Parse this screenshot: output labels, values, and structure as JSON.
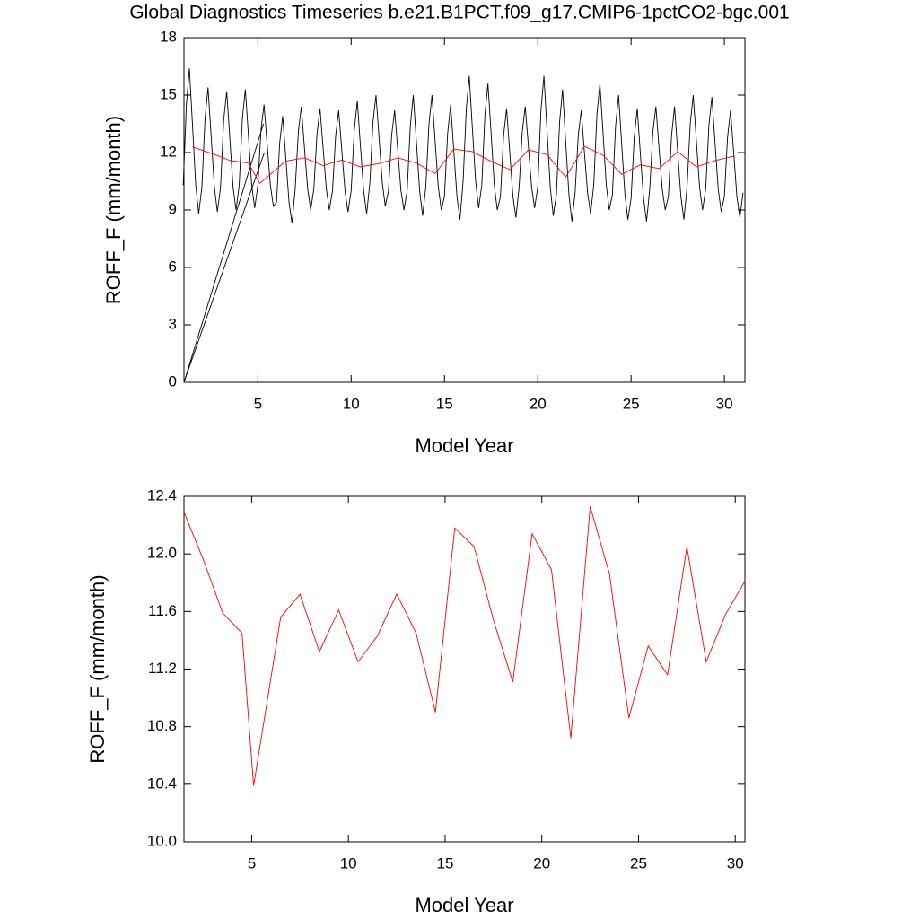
{
  "chart_data": [
    {
      "type": "line",
      "title": "Global Diagnostics Timeseries b.e21.B1PCT.f09_g17.CMIP6-1pctCO2-bgc.001",
      "y_label": "ROFF_F (mm/month)",
      "x_label": "Model Year",
      "xlim": [
        1.04,
        31.1
      ],
      "xticks": [
        5,
        10,
        15,
        20,
        25,
        30
      ],
      "ylim": [
        0,
        18
      ],
      "yticks": [
        0,
        3,
        6,
        9,
        12,
        15,
        18
      ],
      "series": [
        {
          "color": "#000000",
          "x": [
            1.04,
            5.35,
            5.35,
            1.04,
            5.3,
            5.3,
            1.0,
            1.17,
            1.33,
            1.5,
            1.67,
            1.83,
            2.0,
            2.17,
            2.33,
            2.5,
            2.67,
            2.83,
            3.0,
            3.17,
            3.33,
            3.5,
            3.67,
            3.83,
            4.0,
            4.17,
            4.33,
            4.5,
            4.67,
            4.83,
            5.0,
            5.17,
            5.33,
            5.5,
            5.67,
            5.83,
            6.0,
            6.17,
            6.33,
            6.5,
            6.67,
            6.83,
            7.0,
            7.17,
            7.33,
            7.5,
            7.67,
            7.83,
            8.0,
            8.17,
            8.33,
            8.5,
            8.67,
            8.83,
            9.0,
            9.17,
            9.33,
            9.5,
            9.67,
            9.83,
            10.0,
            10.17,
            10.33,
            10.5,
            10.67,
            10.83,
            11.0,
            11.17,
            11.33,
            11.5,
            11.67,
            11.83,
            12.0,
            12.17,
            12.33,
            12.5,
            12.67,
            12.83,
            13.0,
            13.17,
            13.33,
            13.5,
            13.67,
            13.83,
            14.0,
            14.17,
            14.33,
            14.5,
            14.67,
            14.83,
            15.0,
            15.17,
            15.33,
            15.5,
            15.67,
            15.83,
            16.0,
            16.17,
            16.33,
            16.5,
            16.67,
            16.83,
            17.0,
            17.17,
            17.33,
            17.5,
            17.67,
            17.83,
            18.0,
            18.17,
            18.33,
            18.5,
            18.67,
            18.83,
            19.0,
            19.17,
            19.33,
            19.5,
            19.67,
            19.83,
            20.0,
            20.17,
            20.33,
            20.5,
            20.67,
            20.83,
            21.0,
            21.17,
            21.33,
            21.5,
            21.67,
            21.83,
            22.0,
            22.17,
            22.33,
            22.5,
            22.67,
            22.83,
            23.0,
            23.17,
            23.33,
            23.5,
            23.67,
            23.83,
            24.0,
            24.17,
            24.33,
            24.5,
            24.67,
            24.83,
            25.0,
            25.17,
            25.33,
            25.5,
            25.67,
            25.83,
            26.0,
            26.17,
            26.33,
            26.5,
            26.67,
            26.83,
            27.0,
            27.17,
            27.33,
            27.5,
            27.67,
            27.83,
            28.0,
            28.17,
            28.33,
            28.5,
            28.67,
            28.83,
            29.0,
            29.17,
            29.33,
            29.5,
            29.67,
            29.83,
            30.0,
            30.17,
            30.33,
            30.5,
            30.67,
            30.83,
            31.0
          ],
          "values": [
            0,
            12.0,
            null,
            0,
            13.5,
            null,
            10.3,
            14.5,
            16.4,
            13.4,
            10.3,
            8.8,
            10.2,
            13.8,
            15.4,
            12.8,
            10.2,
            8.9,
            10.2,
            13.7,
            15.2,
            12.7,
            10.2,
            9.0,
            10.3,
            13.8,
            15.3,
            12.8,
            10.3,
            9.1,
            10.3,
            13.2,
            14.5,
            12.4,
            10.3,
            9.2,
            9.4,
            12.5,
            13.9,
            11.7,
            9.4,
            8.3,
            10.1,
            13.1,
            14.4,
            12.2,
            10.1,
            9.0,
            10.1,
            13.0,
            14.3,
            12.2,
            10.1,
            9.0,
            10.0,
            12.9,
            14.2,
            12.1,
            10.0,
            8.9,
            10.0,
            13.2,
            14.7,
            12.3,
            10.0,
            8.8,
            10.4,
            13.6,
            15.0,
            12.7,
            10.4,
            9.2,
            10.0,
            12.9,
            14.2,
            12.1,
            10.0,
            9.0,
            10.0,
            13.4,
            15.0,
            12.5,
            10.0,
            8.7,
            10.2,
            13.5,
            15.0,
            12.6,
            10.2,
            9.0,
            9.7,
            13.0,
            14.5,
            12.1,
            9.7,
            8.5,
            10.5,
            14.3,
            16.0,
            13.2,
            10.5,
            9.1,
            10.3,
            14.0,
            15.6,
            13.0,
            10.3,
            9.0,
            9.7,
            12.9,
            14.3,
            12.0,
            9.7,
            8.6,
            10.2,
            13.1,
            14.4,
            12.3,
            10.2,
            9.1,
            10.2,
            14.2,
            16.0,
            13.1,
            10.2,
            8.7,
            9.8,
            13.6,
            15.3,
            12.5,
            9.8,
            8.4,
            9.9,
            12.9,
            14.2,
            12.0,
            9.9,
            8.8,
            10.3,
            14.0,
            15.6,
            13.0,
            10.3,
            9.0,
            9.8,
            13.4,
            15.0,
            12.4,
            9.8,
            8.5,
            9.6,
            12.8,
            14.3,
            11.9,
            9.6,
            8.4,
            10.1,
            13.1,
            14.4,
            12.2,
            10.1,
            9.0,
            9.7,
            12.9,
            14.4,
            12.0,
            9.7,
            8.5,
            10.2,
            13.5,
            15.0,
            12.6,
            10.2,
            9.0,
            10.1,
            13.4,
            14.9,
            12.5,
            10.1,
            8.9,
            9.7,
            12.8,
            14.2,
            12.0,
            9.7,
            8.6,
            9.9
          ]
        },
        {
          "color": "#ff0000",
          "x": [
            1.5,
            2.5,
            3.5,
            4.5,
            5.1,
            6.5,
            7.5,
            8.5,
            9.5,
            10.5,
            11.5,
            12.5,
            13.5,
            14.5,
            15.5,
            16.5,
            17.5,
            18.5,
            19.5,
            20.5,
            21.5,
            22.5,
            23.5,
            24.5,
            25.5,
            26.5,
            27.5,
            28.5,
            29.5,
            30.5
          ],
          "values": [
            12.29,
            11.96,
            11.59,
            11.45,
            10.39,
            11.56,
            11.72,
            11.32,
            11.61,
            11.25,
            11.43,
            11.72,
            11.45,
            10.9,
            12.18,
            12.05,
            11.54,
            11.11,
            12.14,
            11.89,
            10.72,
            12.33,
            11.86,
            10.86,
            11.36,
            11.16,
            12.05,
            11.25,
            11.58,
            11.81
          ]
        }
      ]
    },
    {
      "type": "line",
      "y_label": "ROFF_F (mm/month)",
      "x_label": "Model Year",
      "xlim": [
        1.5,
        30.5
      ],
      "xticks": [
        5,
        10,
        15,
        20,
        25,
        30
      ],
      "ylim": [
        10,
        12.4
      ],
      "yticks": [
        {
          "value": 10,
          "label": "10.0"
        },
        10.4,
        10.8,
        11.2,
        11.6,
        {
          "value": 12,
          "label": "12.0"
        },
        12.4
      ],
      "series": [
        {
          "color": "#ff0000",
          "x": [
            1.5,
            2.5,
            3.5,
            4.5,
            5.1,
            6.5,
            7.5,
            8.5,
            9.5,
            10.5,
            11.5,
            12.5,
            13.5,
            14.5,
            15.5,
            16.5,
            17.5,
            18.5,
            19.5,
            20.5,
            21.5,
            22.5,
            23.5,
            24.5,
            25.5,
            26.5,
            27.5,
            28.5,
            29.5,
            30.5
          ],
          "values": [
            12.29,
            11.96,
            11.59,
            11.45,
            10.39,
            11.56,
            11.72,
            11.32,
            11.61,
            11.25,
            11.43,
            11.72,
            11.45,
            10.9,
            12.18,
            12.05,
            11.54,
            11.11,
            12.14,
            11.89,
            10.72,
            12.33,
            11.86,
            10.86,
            11.36,
            11.16,
            12.05,
            11.25,
            11.58,
            11.81
          ]
        }
      ]
    }
  ]
}
